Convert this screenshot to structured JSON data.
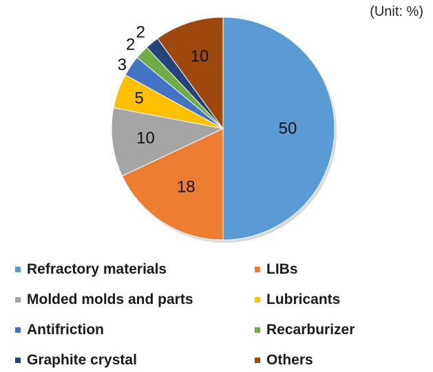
{
  "unit_label": "(Unit: %)",
  "chart_data": {
    "type": "pie",
    "categories": [
      "Refractory materials",
      "LIBs",
      "Molded molds and parts",
      "Lubricants",
      "Antifriction",
      "Recarburizer",
      "Graphite crystal",
      "Others"
    ],
    "values": [
      50,
      18,
      10,
      5,
      3,
      2,
      2,
      10
    ],
    "data_labels": [
      "50",
      "18",
      "10",
      "5",
      "3",
      "2",
      "2",
      "10"
    ],
    "colors": [
      "#5b9bd5",
      "#ed7d31",
      "#a5a5a5",
      "#ffc000",
      "#4472c4",
      "#70ad47",
      "#264478",
      "#9e480e"
    ],
    "start_angle": "12 o'clock",
    "direction": "clockwise",
    "legend_position": "bottom, two columns"
  }
}
